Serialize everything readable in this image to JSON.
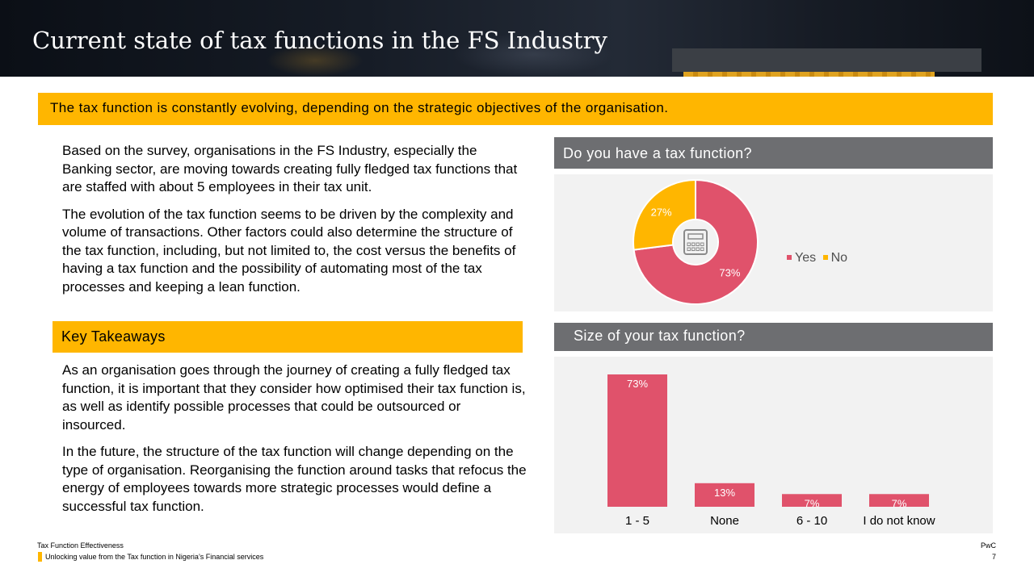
{
  "header": {
    "title": "Current state of tax functions in the FS Industry"
  },
  "banner": {
    "text": "The tax function is constantly evolving, depending on the strategic objectives of the organisation."
  },
  "intro": {
    "paragraphs": [
      "Based on the survey, organisations in the FS Industry, especially the Banking sector, are moving towards creating fully fledged tax functions that are staffed with about 5 employees in their tax unit.",
      "The evolution of the tax function seems to be driven by the complexity and volume of transactions. Other factors could also determine the structure of the tax function, including, but not limited to, the cost versus the benefits of having a tax function and the possibility of automating most of the tax processes and keeping a lean function."
    ]
  },
  "takeaways": {
    "heading": "Key Takeaways",
    "paragraphs": [
      "As an organisation goes through the journey of creating a fully fledged tax function, it is important that they consider how optimised their tax function is, as well as identify possible processes that could be outsourced or insourced.",
      "In the future, the structure of the tax function will change depending on the type of organisation. Reorganising the function around tasks that refocus the energy of employees towards more strategic processes would define a successful tax function."
    ]
  },
  "chart_data": [
    {
      "type": "pie",
      "title": "Do you have a tax function?",
      "categories": [
        "Yes",
        "No"
      ],
      "values": [
        73,
        27
      ],
      "data_labels": [
        "73%",
        "27%"
      ],
      "colors": [
        "#e0526b",
        "#ffb600"
      ],
      "donut": true,
      "center_icon": "calculator-icon",
      "legend": "right"
    },
    {
      "type": "bar",
      "title": "Size of your tax function?",
      "categories": [
        "1 - 5",
        "None",
        "6 - 10",
        "I do not know"
      ],
      "values": [
        73,
        13,
        7,
        7
      ],
      "data_labels": [
        "73%",
        "13%",
        "7%",
        "7%"
      ],
      "color": "#e0526b",
      "ylim": [
        0,
        73
      ],
      "grid": false
    }
  ],
  "footer": {
    "left_line1": "Tax Function Effectiveness",
    "left_line2": "Unlocking value from the Tax function in Nigeria’s Financial services",
    "brand": "PwC",
    "page_number": "7"
  },
  "colors": {
    "accent": "#ffb600",
    "chart_red": "#e0526b",
    "panel_header": "#6d6e71",
    "panel_bg": "#f2f2f2"
  }
}
